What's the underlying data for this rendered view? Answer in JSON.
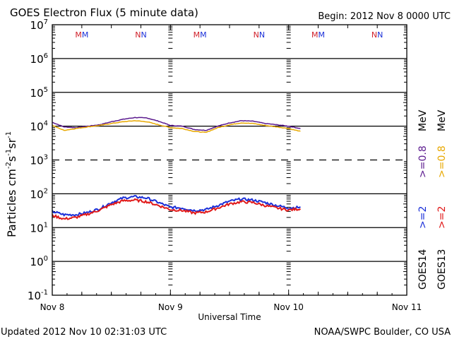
{
  "chart_data": {
    "type": "line",
    "title": "GOES Electron Flux (5 minute data)",
    "begin_label": "Begin: 2012 Nov 8 0000 UTC",
    "xlabel": "Universal Time",
    "ylabel": "Particles cm⁻²s⁻¹sr⁻¹",
    "ylabel_parts": {
      "base": "Particles cm",
      "s": "s",
      "sr": "sr",
      "e1": "-2",
      "e2": "-1",
      "e3": "-1"
    },
    "yscale": "log",
    "ylim_exponents": [
      -1,
      7
    ],
    "y_ticks": [
      {
        "base": "10",
        "exp": "7",
        "value": 7
      },
      {
        "base": "10",
        "exp": "6",
        "value": 6
      },
      {
        "base": "10",
        "exp": "5",
        "value": 5
      },
      {
        "base": "10",
        "exp": "4",
        "value": 4
      },
      {
        "base": "10",
        "exp": "3",
        "value": 3
      },
      {
        "base": "10",
        "exp": "2",
        "value": 2
      },
      {
        "base": "10",
        "exp": "1",
        "value": 1
      },
      {
        "base": "10",
        "exp": "0",
        "value": 0
      },
      {
        "base": "10",
        "exp": "-1",
        "value": -1
      }
    ],
    "dashed_level_exponent": 3,
    "xlim_days": [
      0,
      3
    ],
    "x_ticks": [
      {
        "label": "Nov 8",
        "day": 0
      },
      {
        "label": "Nov 9",
        "day": 1
      },
      {
        "label": "Nov 10",
        "day": 2
      },
      {
        "label": "Nov 11",
        "day": 3
      }
    ],
    "markers": [
      {
        "label": "MM",
        "day": 0.25
      },
      {
        "label": "NN",
        "day": 0.75
      },
      {
        "label": "MM",
        "day": 1.25
      },
      {
        "label": "NN",
        "day": 1.75
      },
      {
        "label": "MM",
        "day": 2.25
      },
      {
        "label": "NN",
        "day": 2.75
      }
    ],
    "series": [
      {
        "name": "GOES14 >=0.8 MeV",
        "color": "#5b1a8e",
        "x_days": [
          0.0,
          0.1,
          0.2,
          0.3,
          0.4,
          0.5,
          0.6,
          0.7,
          0.8,
          0.9,
          1.0,
          1.1,
          1.2,
          1.3,
          1.4,
          1.5,
          1.6,
          1.7,
          1.8,
          1.9,
          2.0,
          2.1
        ],
        "y": [
          13000,
          9500,
          9000,
          10000,
          11000,
          13500,
          16000,
          18000,
          17500,
          14000,
          10500,
          10000,
          8000,
          7500,
          10000,
          12500,
          14500,
          14000,
          12000,
          11000,
          10000,
          8500
        ]
      },
      {
        "name": "GOES13 >=0.8 MeV",
        "color": "#e8a800",
        "x_days": [
          0.0,
          0.1,
          0.2,
          0.3,
          0.4,
          0.5,
          0.6,
          0.7,
          0.8,
          0.9,
          1.0,
          1.1,
          1.2,
          1.3,
          1.4,
          1.5,
          1.6,
          1.7,
          1.8,
          1.9,
          2.0,
          2.1
        ],
        "y": [
          10500,
          7500,
          8500,
          9500,
          10500,
          12000,
          13500,
          14500,
          13500,
          11000,
          9000,
          8500,
          7000,
          6500,
          9000,
          11000,
          12500,
          12000,
          10500,
          9500,
          8500,
          7000
        ]
      },
      {
        "name": "GOES14 >=2",
        "color": "#1a2fd8",
        "x_days": [
          0.0,
          0.1,
          0.2,
          0.3,
          0.4,
          0.5,
          0.6,
          0.7,
          0.8,
          0.9,
          1.0,
          1.1,
          1.2,
          1.3,
          1.4,
          1.5,
          1.6,
          1.7,
          1.8,
          1.9,
          2.0,
          2.1
        ],
        "y": [
          30,
          24,
          24,
          28,
          36,
          55,
          75,
          82,
          75,
          55,
          40,
          38,
          32,
          34,
          45,
          60,
          70,
          65,
          55,
          45,
          38,
          40
        ]
      },
      {
        "name": "GOES13 >=2",
        "color": "#e01818",
        "x_days": [
          0.0,
          0.1,
          0.2,
          0.3,
          0.4,
          0.5,
          0.6,
          0.7,
          0.8,
          0.9,
          1.0,
          1.1,
          1.2,
          1.3,
          1.4,
          1.5,
          1.6,
          1.7,
          1.8,
          1.9,
          2.0,
          2.1
        ],
        "y": [
          23,
          18,
          20,
          25,
          33,
          48,
          62,
          65,
          58,
          45,
          34,
          32,
          27,
          29,
          38,
          50,
          58,
          55,
          45,
          38,
          33,
          36
        ]
      }
    ],
    "legend": {
      "placement": "right",
      "columns": [
        {
          "sat": "GOES14",
          "low": ">=2",
          "high": ">=0.8",
          "unit": "MeV",
          "low_color": "#1a2fd8",
          "high_color": "#5b1a8e"
        },
        {
          "sat": "GOES13",
          "low": ">=2",
          "high": ">=0.8",
          "unit": "MeV",
          "low_color": "#e01818",
          "high_color": "#e8a800"
        }
      ]
    },
    "marker_colors": {
      "first": "#d0202a",
      "second": "#1a2fd8"
    },
    "grid": true
  },
  "footer": {
    "updated": "Updated 2012 Nov 10 02:31:03 UTC",
    "credit": "NOAA/SWPC Boulder, CO USA"
  }
}
